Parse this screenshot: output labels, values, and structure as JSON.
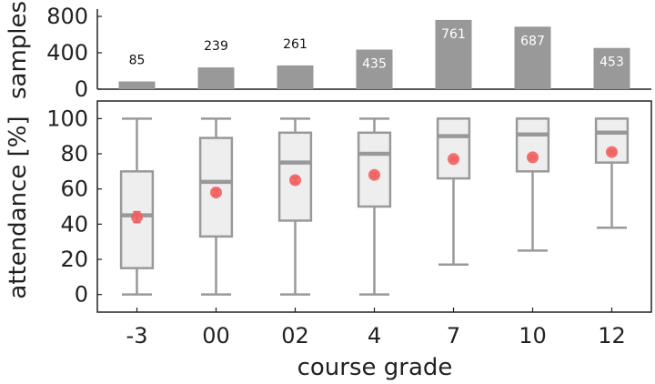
{
  "chart_data": [
    {
      "type": "bar",
      "ylabel": "samples",
      "categories": [
        "-3",
        "00",
        "02",
        "4",
        "7",
        "10",
        "12"
      ],
      "values": [
        85,
        239,
        261,
        435,
        761,
        687,
        453
      ],
      "data_labels": [
        "85",
        "239",
        "261",
        "435",
        "761",
        "687",
        "453"
      ],
      "yticks": [
        "0",
        "400",
        "800"
      ],
      "ylim": [
        0,
        800
      ],
      "bar_color": "#999999"
    },
    {
      "type": "box",
      "xlabel": "course grade",
      "ylabel": "attendance [%]",
      "categories": [
        "-3",
        "00",
        "02",
        "4",
        "7",
        "10",
        "12"
      ],
      "series": [
        {
          "min": 0,
          "q1": 15,
          "median": 45,
          "q3": 70,
          "max": 100,
          "mean": 44,
          "mean_err": 3
        },
        {
          "min": 0,
          "q1": 33,
          "median": 64,
          "q3": 89,
          "max": 100,
          "mean": 58,
          "mean_err": 1.5
        },
        {
          "min": 0,
          "q1": 42,
          "median": 75,
          "q3": 92,
          "max": 100,
          "mean": 65,
          "mean_err": 1.5
        },
        {
          "min": 0,
          "q1": 50,
          "median": 80,
          "q3": 92,
          "max": 100,
          "mean": 68,
          "mean_err": 1
        },
        {
          "min": 17,
          "q1": 66,
          "median": 90,
          "q3": 100,
          "max": 100,
          "mean": 77,
          "mean_err": 0.8
        },
        {
          "min": 25,
          "q1": 70,
          "median": 91,
          "q3": 100,
          "max": 100,
          "mean": 78,
          "mean_err": 0.8
        },
        {
          "min": 38,
          "q1": 75,
          "median": 92,
          "q3": 100,
          "max": 100,
          "mean": 81,
          "mean_err": 0.8
        }
      ],
      "yticks": [
        "0",
        "20",
        "40",
        "60",
        "80",
        "100"
      ],
      "ylim": [
        -10,
        110
      ],
      "box_fill": "#eeeeee",
      "box_stroke": "#999999",
      "mean_color": "#f06060"
    }
  ]
}
